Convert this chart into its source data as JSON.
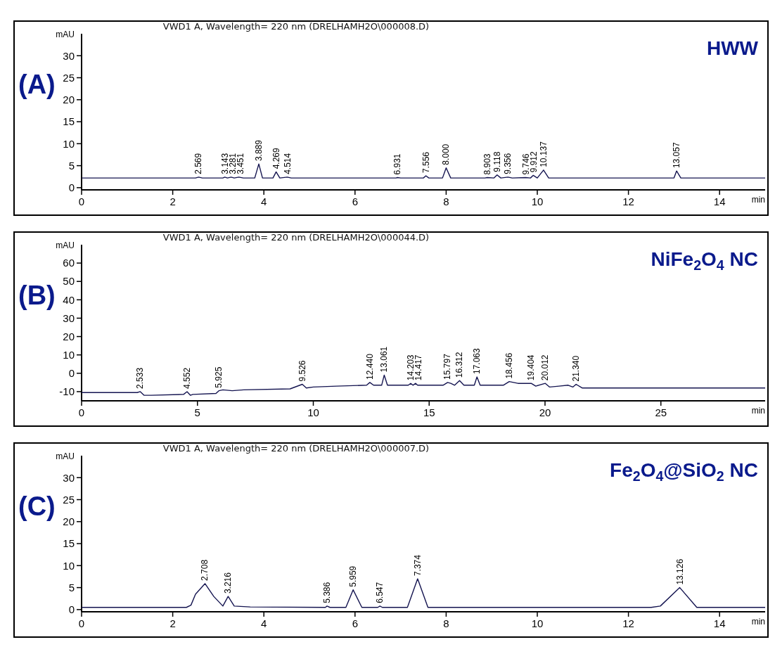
{
  "chart_data": [
    {
      "type": "line",
      "title": "VWD1 A, Wavelength= 220 nm (DRELHAMH2O\\000008.D)",
      "xlabel": "min",
      "ylabel": "mAU",
      "xlim": [
        0,
        15
      ],
      "xticks": [
        0,
        2,
        4,
        6,
        8,
        10,
        12,
        14
      ],
      "ylim": [
        -0.5,
        35
      ],
      "yticks": [
        0,
        5,
        10,
        15,
        20,
        25,
        30
      ],
      "marker": "none",
      "series": [
        {
          "color": "#141450",
          "x": [
            0,
            2.5,
            2.569,
            2.65,
            3.1,
            3.143,
            3.2,
            3.281,
            3.35,
            3.451,
            3.55,
            3.8,
            3.889,
            3.97,
            4.2,
            4.269,
            4.35,
            4.514,
            4.6,
            6.9,
            6.931,
            7.0,
            7.5,
            7.556,
            7.62,
            7.92,
            8.0,
            8.1,
            8.85,
            8.903,
            9.05,
            9.118,
            9.2,
            9.356,
            9.45,
            9.746,
            9.85,
            9.912,
            10.0,
            10.137,
            10.25,
            13.0,
            13.057,
            13.15,
            15
          ],
          "values": [
            2.2,
            2.2,
            2.4,
            2.2,
            2.2,
            2.4,
            2.2,
            2.4,
            2.2,
            2.4,
            2.2,
            2.2,
            5.4,
            2.2,
            2.2,
            3.6,
            2.2,
            2.4,
            2.2,
            2.2,
            2.3,
            2.2,
            2.2,
            2.7,
            2.2,
            2.2,
            4.5,
            2.2,
            2.2,
            2.3,
            2.2,
            2.9,
            2.2,
            2.4,
            2.2,
            2.3,
            2.2,
            2.8,
            2.2,
            4.0,
            2.2,
            2.2,
            3.8,
            2.2,
            2.2
          ]
        }
      ],
      "annotations": [
        "(A)",
        "HWW",
        {
          "text": "2.569",
          "x": 2.569,
          "y": 2.4
        },
        {
          "text": "3.143",
          "x": 3.143,
          "y": 2.4
        },
        {
          "text": "3.281",
          "x": 3.281,
          "y": 2.4
        },
        {
          "text": "3.451",
          "x": 3.451,
          "y": 2.4
        },
        {
          "text": "3.889",
          "x": 3.889,
          "y": 5.4
        },
        {
          "text": "4.269",
          "x": 4.269,
          "y": 3.6
        },
        {
          "text": "4.514",
          "x": 4.514,
          "y": 2.4
        },
        {
          "text": "6.931",
          "x": 6.931,
          "y": 2.3
        },
        {
          "text": "7.556",
          "x": 7.556,
          "y": 2.7
        },
        {
          "text": "8.000",
          "x": 8.0,
          "y": 4.5
        },
        {
          "text": "8.903",
          "x": 8.903,
          "y": 2.3
        },
        {
          "text": "9.118",
          "x": 9.118,
          "y": 2.9
        },
        {
          "text": "9.356",
          "x": 9.356,
          "y": 2.4
        },
        {
          "text": "9.746",
          "x": 9.746,
          "y": 2.3
        },
        {
          "text": "9.912",
          "x": 9.912,
          "y": 2.8
        },
        {
          "text": "10.137",
          "x": 10.137,
          "y": 4.0
        },
        {
          "text": "13.057",
          "x": 13.057,
          "y": 3.8
        }
      ]
    },
    {
      "type": "line",
      "title": "VWD1 A, Wavelength= 220 nm (DRELHAMH2O\\000044.D)",
      "xlabel": "min",
      "ylabel": "mAU",
      "xlim": [
        0,
        29.5
      ],
      "xticks": [
        0,
        5,
        10,
        15,
        20,
        25
      ],
      "ylim": [
        -15,
        70
      ],
      "yticks": [
        -10,
        0,
        10,
        20,
        30,
        40,
        50,
        60
      ],
      "marker": "none",
      "series": [
        {
          "color": "#141450",
          "x": [
            0,
            2.4,
            2.533,
            2.7,
            3,
            4.4,
            4.552,
            4.7,
            4.8,
            5.8,
            5.925,
            6.1,
            6.5,
            7,
            9,
            9.526,
            9.7,
            10,
            11,
            12.3,
            12.44,
            12.6,
            12.95,
            13.061,
            13.2,
            14.1,
            14.203,
            14.3,
            14.417,
            14.5,
            15.6,
            15.797,
            15.932,
            16.1,
            16.312,
            16.5,
            16.95,
            17.063,
            17.2,
            18.2,
            18.456,
            18.831,
            19.098,
            19.248,
            19.404,
            19.6,
            20.012,
            20.2,
            20.6,
            21,
            21.2,
            21.34,
            21.6,
            29.5
          ],
          "values": [
            -10.5,
            -10.5,
            -10,
            -12,
            -12,
            -11.5,
            -10,
            -12,
            -11.5,
            -11,
            -9.5,
            -9,
            -9.5,
            -9,
            -8.5,
            -6,
            -8,
            -7.5,
            -7,
            -6.5,
            -5,
            -6.5,
            -6.5,
            -1,
            -6.5,
            -6.5,
            -5.5,
            -6.5,
            -5.5,
            -6.5,
            -6.5,
            -5,
            -5.5,
            -6.5,
            -4,
            -6.5,
            -6.5,
            -2,
            -6.5,
            -6.5,
            -4.5,
            -5.5,
            -5.5,
            -5.5,
            -5.5,
            -7,
            -5.5,
            -7.5,
            -7,
            -6.5,
            -7.5,
            -6,
            -8,
            -8
          ]
        }
      ],
      "annotations": [
        "(B)",
        "NiFe$_{2}$O$_{4}$ NC",
        {
          "text": "2.533",
          "x": 2.533,
          "y": -10
        },
        {
          "text": "4.552",
          "x": 4.552,
          "y": -10
        },
        {
          "text": "5.925",
          "x": 5.925,
          "y": -9.5
        },
        {
          "text": "9.526",
          "x": 9.526,
          "y": -6
        },
        {
          "text": "12.440",
          "x": 12.44,
          "y": -5
        },
        {
          "text": "13.061",
          "x": 13.061,
          "y": -1
        },
        {
          "text": "14.203",
          "x": 14.203,
          "y": -5.5
        },
        {
          "text": "14.417",
          "x": 14.417,
          "y": -5.5
        },
        {
          "text": "15.797",
          "x": 15.797,
          "y": -5
        },
        {
          "text": "16.312",
          "x": 16.312,
          "y": -4
        },
        {
          "text": "17.063",
          "x": 17.063,
          "y": -2
        },
        {
          "text": "18.456",
          "x": 18.456,
          "y": -4.5
        },
        {
          "text": "19.404",
          "x": 19.404,
          "y": -5.5
        },
        {
          "text": "20.012",
          "x": 20.012,
          "y": -5.5
        },
        {
          "text": "21.340",
          "x": 21.34,
          "y": -6
        }
      ]
    },
    {
      "type": "line",
      "title": "VWD1 A, Wavelength= 220 nm (DRELHAMH2O\\000007.D)",
      "xlabel": "min",
      "ylabel": "mAU",
      "xlim": [
        0,
        15
      ],
      "xticks": [
        0,
        2,
        4,
        6,
        8,
        10,
        12,
        14
      ],
      "ylim": [
        -0.5,
        35
      ],
      "yticks": [
        0,
        5,
        10,
        15,
        20,
        25,
        30
      ],
      "marker": "none",
      "series": [
        {
          "color": "#141450",
          "x": [
            0,
            2.3,
            2.4,
            2.5,
            2.708,
            2.9,
            3.1,
            3.216,
            3.35,
            3.7,
            5.35,
            5.386,
            5.45,
            5.8,
            5.959,
            6.15,
            6.5,
            6.547,
            6.6,
            7.15,
            7.374,
            7.6,
            12.5,
            12.7,
            13.126,
            13.5,
            15
          ],
          "values": [
            0.5,
            0.5,
            1,
            3.5,
            5.9,
            3,
            0.8,
            3,
            0.8,
            0.6,
            0.5,
            0.8,
            0.5,
            0.5,
            4.5,
            0.5,
            0.5,
            0.8,
            0.5,
            0.5,
            7,
            0.5,
            0.5,
            0.8,
            5,
            0.5,
            0.5
          ]
        }
      ],
      "annotations": [
        "(C)",
        "Fe$_{2}$O$_{4}$@SiO$_{2}$ NC",
        {
          "text": "2.708",
          "x": 2.708,
          "y": 5.9
        },
        {
          "text": "3.216",
          "x": 3.216,
          "y": 3
        },
        {
          "text": "5.386",
          "x": 5.386,
          "y": 0.8
        },
        {
          "text": "5.959",
          "x": 5.959,
          "y": 4.5
        },
        {
          "text": "6.547",
          "x": 6.547,
          "y": 0.8
        },
        {
          "text": "7.374",
          "x": 7.374,
          "y": 7
        },
        {
          "text": "13.126",
          "x": 13.126,
          "y": 5
        }
      ]
    }
  ]
}
